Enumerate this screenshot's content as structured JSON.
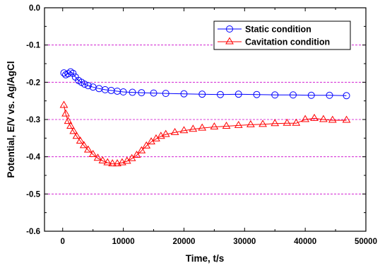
{
  "chart_data": {
    "type": "scatter",
    "xlabel": "Time, t/s",
    "ylabel": "Potential, E/V vs. Ag/AgCl",
    "xlim": [
      -3000,
      50000
    ],
    "ylim": [
      -0.6,
      0.0
    ],
    "xticks": [
      0,
      10000,
      20000,
      30000,
      40000,
      50000
    ],
    "yticks": [
      0.0,
      -0.1,
      -0.2,
      -0.3,
      -0.4,
      -0.5,
      -0.6
    ],
    "xtick_labels": [
      "0",
      "10000",
      "20000",
      "30000",
      "40000",
      "50000"
    ],
    "ytick_labels": [
      "0.0",
      "-0.1",
      "-0.2",
      "-0.3",
      "-0.4",
      "-0.5",
      "-0.6"
    ],
    "grid": "horizontal dashed lines at -0.1, -0.2, -0.3, -0.4, -0.5",
    "grid_color": "#cc00cc",
    "legend_position": "top-right",
    "series": [
      {
        "name": "Static condition",
        "marker": "circle",
        "color": "#0000ff",
        "points": [
          [
            200,
            -0.175
          ],
          [
            500,
            -0.18
          ],
          [
            900,
            -0.177
          ],
          [
            1300,
            -0.172
          ],
          [
            1700,
            -0.176
          ],
          [
            2100,
            -0.186
          ],
          [
            2600,
            -0.195
          ],
          [
            3100,
            -0.2
          ],
          [
            3600,
            -0.205
          ],
          [
            4200,
            -0.209
          ],
          [
            5000,
            -0.213
          ],
          [
            6000,
            -0.217
          ],
          [
            7000,
            -0.22
          ],
          [
            8000,
            -0.222
          ],
          [
            9000,
            -0.224
          ],
          [
            10000,
            -0.226
          ],
          [
            11500,
            -0.227
          ],
          [
            13000,
            -0.228
          ],
          [
            15000,
            -0.229
          ],
          [
            17000,
            -0.23
          ],
          [
            20000,
            -0.231
          ],
          [
            23000,
            -0.232
          ],
          [
            26000,
            -0.233
          ],
          [
            29000,
            -0.232
          ],
          [
            32000,
            -0.233
          ],
          [
            35000,
            -0.234
          ],
          [
            38000,
            -0.234
          ],
          [
            41000,
            -0.235
          ],
          [
            44000,
            -0.235
          ],
          [
            46800,
            -0.236
          ]
        ]
      },
      {
        "name": "Cavitation condition",
        "marker": "triangle",
        "color": "#ff0000",
        "points": [
          [
            200,
            -0.262
          ],
          [
            500,
            -0.285
          ],
          [
            900,
            -0.305
          ],
          [
            1300,
            -0.318
          ],
          [
            1800,
            -0.332
          ],
          [
            2300,
            -0.345
          ],
          [
            2900,
            -0.358
          ],
          [
            3500,
            -0.37
          ],
          [
            4200,
            -0.382
          ],
          [
            5000,
            -0.394
          ],
          [
            5800,
            -0.404
          ],
          [
            6600,
            -0.411
          ],
          [
            7400,
            -0.416
          ],
          [
            8200,
            -0.419
          ],
          [
            9000,
            -0.419
          ],
          [
            9800,
            -0.416
          ],
          [
            10600,
            -0.412
          ],
          [
            11400,
            -0.405
          ],
          [
            12200,
            -0.396
          ],
          [
            13000,
            -0.384
          ],
          [
            13800,
            -0.371
          ],
          [
            14600,
            -0.36
          ],
          [
            15400,
            -0.352
          ],
          [
            16200,
            -0.345
          ],
          [
            17000,
            -0.34
          ],
          [
            18500,
            -0.335
          ],
          [
            20000,
            -0.33
          ],
          [
            21500,
            -0.326
          ],
          [
            23000,
            -0.323
          ],
          [
            25000,
            -0.32
          ],
          [
            27000,
            -0.318
          ],
          [
            29000,
            -0.316
          ],
          [
            31000,
            -0.314
          ],
          [
            33000,
            -0.313
          ],
          [
            35000,
            -0.311
          ],
          [
            37000,
            -0.31
          ],
          [
            38500,
            -0.31
          ],
          [
            40000,
            -0.3
          ],
          [
            41500,
            -0.297
          ],
          [
            43000,
            -0.3
          ],
          [
            44500,
            -0.302
          ],
          [
            46800,
            -0.302
          ]
        ]
      }
    ]
  }
}
